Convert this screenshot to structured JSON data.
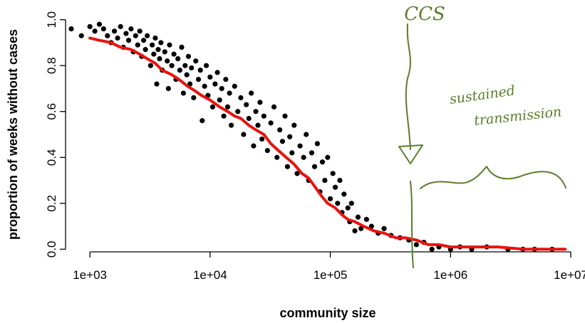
{
  "chart_data": {
    "type": "scatter",
    "xlabel": "community size",
    "ylabel": "proportion of weeks without cases",
    "x_scale": "log10",
    "xlim": [
      700,
      11000000
    ],
    "ylim": [
      -0.03,
      1.03
    ],
    "x_ticks": [
      {
        "value": 1000,
        "label": "1e+03"
      },
      {
        "value": 10000,
        "label": "1e+04"
      },
      {
        "value": 100000,
        "label": "1e+05"
      },
      {
        "value": 1000000,
        "label": "1e+06"
      },
      {
        "value": 10000000,
        "label": "1e+07"
      }
    ],
    "y_ticks": [
      {
        "value": 0.0,
        "label": "0.0"
      },
      {
        "value": 0.2,
        "label": "0.2"
      },
      {
        "value": 0.4,
        "label": "0.4"
      },
      {
        "value": 0.6,
        "label": "0.6"
      },
      {
        "value": 0.8,
        "label": "0.8"
      },
      {
        "value": 1.0,
        "label": "1.0"
      }
    ],
    "grid": false,
    "series": [
      {
        "kind": "scatter",
        "color": "#000000",
        "points": [
          [
            700,
            0.96
          ],
          [
            850,
            0.93
          ],
          [
            1000,
            0.97
          ],
          [
            1100,
            0.95
          ],
          [
            1200,
            0.98
          ],
          [
            1300,
            0.96
          ],
          [
            1400,
            0.93
          ],
          [
            1500,
            0.9
          ],
          [
            1600,
            0.95
          ],
          [
            1700,
            0.92
          ],
          [
            1800,
            0.97
          ],
          [
            1900,
            0.88
          ],
          [
            2000,
            0.94
          ],
          [
            2100,
            0.91
          ],
          [
            2200,
            0.96
          ],
          [
            2300,
            0.86
          ],
          [
            2400,
            0.93
          ],
          [
            2500,
            0.89
          ],
          [
            2600,
            0.95
          ],
          [
            2700,
            0.84
          ],
          [
            2800,
            0.91
          ],
          [
            2900,
            0.87
          ],
          [
            3000,
            0.93
          ],
          [
            3200,
            0.8
          ],
          [
            3300,
            0.89
          ],
          [
            3400,
            0.85
          ],
          [
            3500,
            0.92
          ],
          [
            3600,
            0.72
          ],
          [
            3700,
            0.87
          ],
          [
            3800,
            0.83
          ],
          [
            3900,
            0.9
          ],
          [
            4000,
            0.78
          ],
          [
            4200,
            0.86
          ],
          [
            4400,
            0.82
          ],
          [
            4500,
            0.7
          ],
          [
            4600,
            0.89
          ],
          [
            4800,
            0.8
          ],
          [
            5000,
            0.85
          ],
          [
            5200,
            0.74
          ],
          [
            5400,
            0.83
          ],
          [
            5600,
            0.78
          ],
          [
            5800,
            0.88
          ],
          [
            6000,
            0.68
          ],
          [
            6200,
            0.8
          ],
          [
            6400,
            0.76
          ],
          [
            6600,
            0.84
          ],
          [
            6800,
            0.72
          ],
          [
            7000,
            0.79
          ],
          [
            7300,
            0.66
          ],
          [
            7600,
            0.82
          ],
          [
            8000,
            0.74
          ],
          [
            8300,
            0.78
          ],
          [
            8600,
            0.56
          ],
          [
            9000,
            0.71
          ],
          [
            9300,
            0.8
          ],
          [
            9600,
            0.67
          ],
          [
            10000,
            0.75
          ],
          [
            10500,
            0.62
          ],
          [
            11000,
            0.72
          ],
          [
            11500,
            0.77
          ],
          [
            12000,
            0.65
          ],
          [
            12500,
            0.7
          ],
          [
            13000,
            0.58
          ],
          [
            13500,
            0.74
          ],
          [
            14000,
            0.62
          ],
          [
            14500,
            0.68
          ],
          [
            15000,
            0.54
          ],
          [
            16000,
            0.71
          ],
          [
            17000,
            0.6
          ],
          [
            18000,
            0.66
          ],
          [
            19000,
            0.5
          ],
          [
            20000,
            0.63
          ],
          [
            21000,
            0.57
          ],
          [
            22000,
            0.68
          ],
          [
            23000,
            0.45
          ],
          [
            24000,
            0.6
          ],
          [
            25000,
            0.54
          ],
          [
            26000,
            0.64
          ],
          [
            27000,
            0.48
          ],
          [
            28000,
            0.58
          ],
          [
            30000,
            0.43
          ],
          [
            32000,
            0.55
          ],
          [
            34000,
            0.62
          ],
          [
            36000,
            0.4
          ],
          [
            38000,
            0.52
          ],
          [
            40000,
            0.47
          ],
          [
            42000,
            0.58
          ],
          [
            44000,
            0.36
          ],
          [
            46000,
            0.49
          ],
          [
            48000,
            0.42
          ],
          [
            50000,
            0.54
          ],
          [
            53000,
            0.33
          ],
          [
            56000,
            0.45
          ],
          [
            60000,
            0.4
          ],
          [
            63000,
            0.5
          ],
          [
            66000,
            0.3
          ],
          [
            70000,
            0.42
          ],
          [
            74000,
            0.36
          ],
          [
            78000,
            0.46
          ],
          [
            82000,
            0.25
          ],
          [
            86000,
            0.38
          ],
          [
            90000,
            0.3
          ],
          [
            95000,
            0.4
          ],
          [
            100000,
            0.22
          ],
          [
            105000,
            0.33
          ],
          [
            110000,
            0.27
          ],
          [
            115000,
            0.2
          ],
          [
            120000,
            0.3
          ],
          [
            125000,
            0.16
          ],
          [
            130000,
            0.24
          ],
          [
            140000,
            0.18
          ],
          [
            145000,
            0.12
          ],
          [
            150000,
            0.2
          ],
          [
            160000,
            0.08
          ],
          [
            170000,
            0.14
          ],
          [
            180000,
            0.09
          ],
          [
            200000,
            0.13
          ],
          [
            220000,
            0.1
          ],
          [
            250000,
            0.07
          ],
          [
            280000,
            0.09
          ],
          [
            320000,
            0.06
          ],
          [
            380000,
            0.05
          ],
          [
            450000,
            0.04
          ],
          [
            520000,
            0.02
          ],
          [
            600000,
            0.03
          ],
          [
            700000,
            0.0
          ],
          [
            800000,
            0.01
          ],
          [
            1000000,
            0.0
          ],
          [
            1200000,
            0.01
          ],
          [
            1500000,
            0.0
          ],
          [
            2000000,
            0.01
          ],
          [
            3000000,
            0.0
          ],
          [
            4000000,
            0.0
          ],
          [
            5000000,
            0.0
          ],
          [
            7000000,
            0.0
          ]
        ]
      },
      {
        "kind": "line",
        "color": "#e8130f",
        "points": [
          [
            1000,
            0.92
          ],
          [
            1200,
            0.91
          ],
          [
            1500,
            0.9
          ],
          [
            1800,
            0.88
          ],
          [
            2200,
            0.87
          ],
          [
            2600,
            0.85
          ],
          [
            3000,
            0.83
          ],
          [
            3500,
            0.81
          ],
          [
            4000,
            0.78
          ],
          [
            4800,
            0.76
          ],
          [
            5500,
            0.74
          ],
          [
            6500,
            0.71
          ],
          [
            7500,
            0.69
          ],
          [
            8500,
            0.67
          ],
          [
            10000,
            0.65
          ],
          [
            12000,
            0.62
          ],
          [
            14000,
            0.6
          ],
          [
            16000,
            0.58
          ],
          [
            18000,
            0.57
          ],
          [
            21000,
            0.54
          ],
          [
            24000,
            0.52
          ],
          [
            28000,
            0.5
          ],
          [
            32000,
            0.46
          ],
          [
            37000,
            0.43
          ],
          [
            43000,
            0.4
          ],
          [
            50000,
            0.37
          ],
          [
            58000,
            0.33
          ],
          [
            66000,
            0.31
          ],
          [
            75000,
            0.27
          ],
          [
            85000,
            0.23
          ],
          [
            95000,
            0.2
          ],
          [
            110000,
            0.18
          ],
          [
            125000,
            0.15
          ],
          [
            140000,
            0.13
          ],
          [
            160000,
            0.12
          ],
          [
            190000,
            0.1
          ],
          [
            230000,
            0.08
          ],
          [
            280000,
            0.07
          ],
          [
            350000,
            0.05
          ],
          [
            420000,
            0.05
          ],
          [
            520000,
            0.04
          ],
          [
            650000,
            0.02
          ],
          [
            800000,
            0.02
          ],
          [
            1000000,
            0.01
          ],
          [
            1300000,
            0.01
          ],
          [
            1700000,
            0.01
          ],
          [
            2500000,
            0.01
          ],
          [
            4000000,
            0.0
          ],
          [
            6000000,
            0.0
          ],
          [
            9000000,
            0.0
          ]
        ]
      }
    ],
    "annotations": [
      {
        "text": "CCS"
      },
      {
        "text": "sustained"
      },
      {
        "text": "transmission"
      }
    ]
  }
}
